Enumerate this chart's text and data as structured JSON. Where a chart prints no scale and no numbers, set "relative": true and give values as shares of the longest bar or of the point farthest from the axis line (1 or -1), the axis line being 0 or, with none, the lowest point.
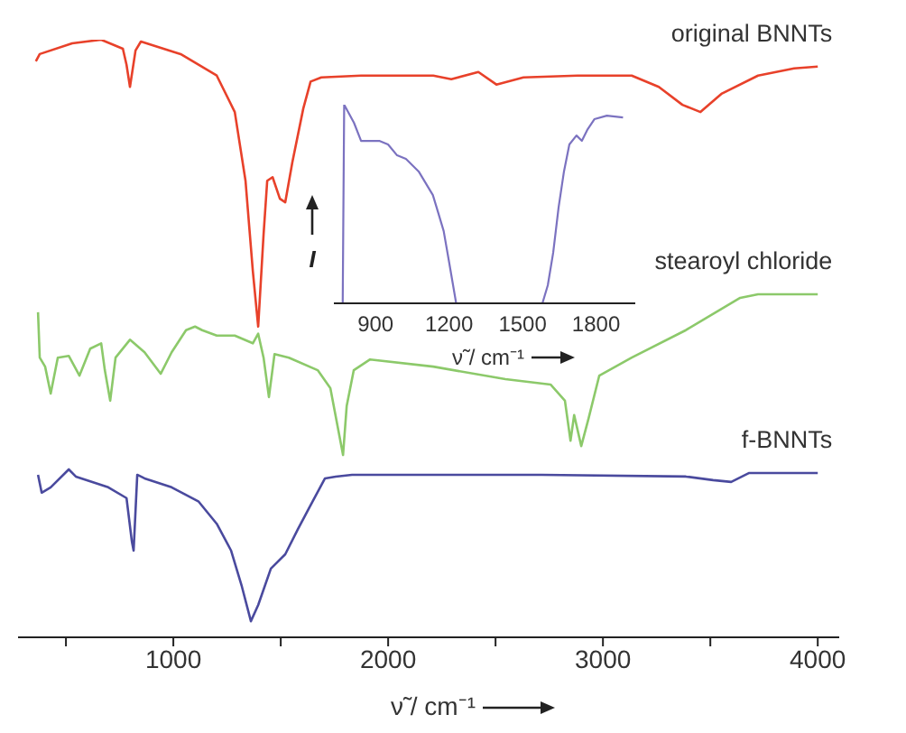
{
  "chart_data": [
    {
      "type": "line",
      "relative": true,
      "xlabel": "ν̃ / cm⁻¹",
      "xlim": [
        277,
        4100
      ],
      "xticks": [
        {
          "value": 500,
          "label": null
        },
        1000,
        {
          "value": 1500,
          "label": null
        },
        2000,
        {
          "value": 2500,
          "label": null
        },
        3000,
        {
          "value": 3500,
          "label": null
        },
        4000
      ],
      "marker": "none",
      "series": [
        {
          "name": "original BNNTs",
          "color": "#e8412a",
          "x": [
            360,
            378,
            529,
            664,
            765,
            782,
            798,
            824,
            849,
            1034,
            1202,
            1286,
            1336,
            1370,
            1395,
            1420,
            1437,
            1462,
            1496,
            1521,
            1554,
            1605,
            1639,
            1689,
            1874,
            2210,
            2294,
            2420,
            2504,
            2630,
            2882,
            3134,
            3260,
            3370,
            3454,
            3554,
            3722,
            3890,
            4000
          ],
          "values": [
            0.964,
            0.976,
            0.994,
            1.0,
            0.985,
            0.958,
            0.921,
            0.982,
            0.997,
            0.976,
            0.94,
            0.879,
            0.764,
            0.613,
            0.52,
            0.674,
            0.764,
            0.77,
            0.734,
            0.728,
            0.795,
            0.885,
            0.93,
            0.937,
            0.94,
            0.94,
            0.934,
            0.946,
            0.925,
            0.937,
            0.94,
            0.94,
            0.921,
            0.891,
            0.879,
            0.91,
            0.94,
            0.952,
            0.955
          ]
        },
        {
          "name": "stearoyl chloride",
          "color": "#8cc96a",
          "x": [
            370,
            378,
            403,
            429,
            462,
            513,
            563,
            613,
            664,
            681,
            706,
            731,
            798,
            866,
            941,
            992,
            1059,
            1101,
            1134,
            1202,
            1286,
            1370,
            1395,
            1420,
            1445,
            1471,
            1538,
            1672,
            1731,
            1790,
            1807,
            1840,
            1916,
            2210,
            2546,
            2756,
            2823,
            2849,
            2866,
            2899,
            2933,
            2983,
            3134,
            3386,
            3639,
            3722,
            4000
          ],
          "values": [
            0.544,
            0.468,
            0.453,
            0.408,
            0.468,
            0.471,
            0.438,
            0.483,
            0.492,
            0.447,
            0.396,
            0.468,
            0.498,
            0.477,
            0.441,
            0.477,
            0.514,
            0.52,
            0.514,
            0.505,
            0.505,
            0.492,
            0.508,
            0.468,
            0.402,
            0.474,
            0.468,
            0.447,
            0.417,
            0.305,
            0.387,
            0.447,
            0.465,
            0.453,
            0.432,
            0.423,
            0.396,
            0.329,
            0.372,
            0.32,
            0.366,
            0.438,
            0.468,
            0.514,
            0.568,
            0.574,
            0.574
          ]
        },
        {
          "name": "f-BNNTs",
          "color": "#4a4a9e",
          "x": [
            370,
            387,
            429,
            513,
            546,
            697,
            782,
            807,
            815,
            832,
            866,
            992,
            1118,
            1202,
            1269,
            1319,
            1361,
            1395,
            1454,
            1521,
            1580,
            1639,
            1706,
            1756,
            1832,
            2378,
            2714,
            3386,
            3513,
            3597,
            3681,
            4000
          ],
          "values": [
            0.272,
            0.242,
            0.251,
            0.281,
            0.269,
            0.251,
            0.233,
            0.16,
            0.145,
            0.272,
            0.266,
            0.251,
            0.227,
            0.19,
            0.145,
            0.085,
            0.027,
            0.054,
            0.115,
            0.139,
            0.181,
            0.221,
            0.266,
            0.269,
            0.272,
            0.272,
            0.272,
            0.269,
            0.263,
            0.26,
            0.275,
            0.275
          ]
        }
      ]
    },
    {
      "type": "line",
      "relative": true,
      "xlabel": "ν̃ / cm⁻¹",
      "ylabel": "I",
      "xlim": [
        730,
        1960
      ],
      "xticks": [
        900,
        1200,
        1500,
        1800
      ],
      "marker": "none",
      "series": [
        {
          "color": "#7b72c0",
          "x": [
            766,
            772,
            812,
            841,
            915,
            951,
            988,
            1024,
            1076,
            1134,
            1156,
            1178,
            1200,
            1229,
            1400,
            1581,
            1603,
            1625,
            1647,
            1669,
            1691,
            1720,
            1742,
            1764,
            1793,
            1844,
            1910
          ],
          "values": [
            0,
            1.0,
            0.909,
            0.818,
            0.818,
            0.8,
            0.745,
            0.727,
            0.664,
            0.545,
            0.455,
            0.364,
            0.209,
            0,
            null,
            0,
            0.091,
            0.255,
            0.482,
            0.664,
            0.8,
            0.845,
            0.818,
            0.873,
            0.927,
            0.945,
            0.936
          ]
        }
      ]
    }
  ]
}
